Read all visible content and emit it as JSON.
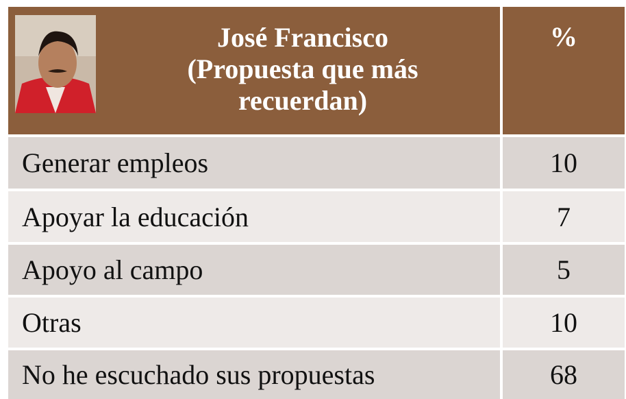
{
  "header": {
    "title": "José Francisco",
    "subtitle": "(Propuesta que más recuerdan)",
    "value_header": "%"
  },
  "table": {
    "rows": [
      [
        "Generar empleos",
        10
      ],
      [
        "Apoyar la educación",
        7
      ],
      [
        "Apoyo al campo",
        5
      ],
      [
        "Otras",
        10
      ],
      [
        "No he escuchado sus propuestas",
        68
      ]
    ]
  }
}
